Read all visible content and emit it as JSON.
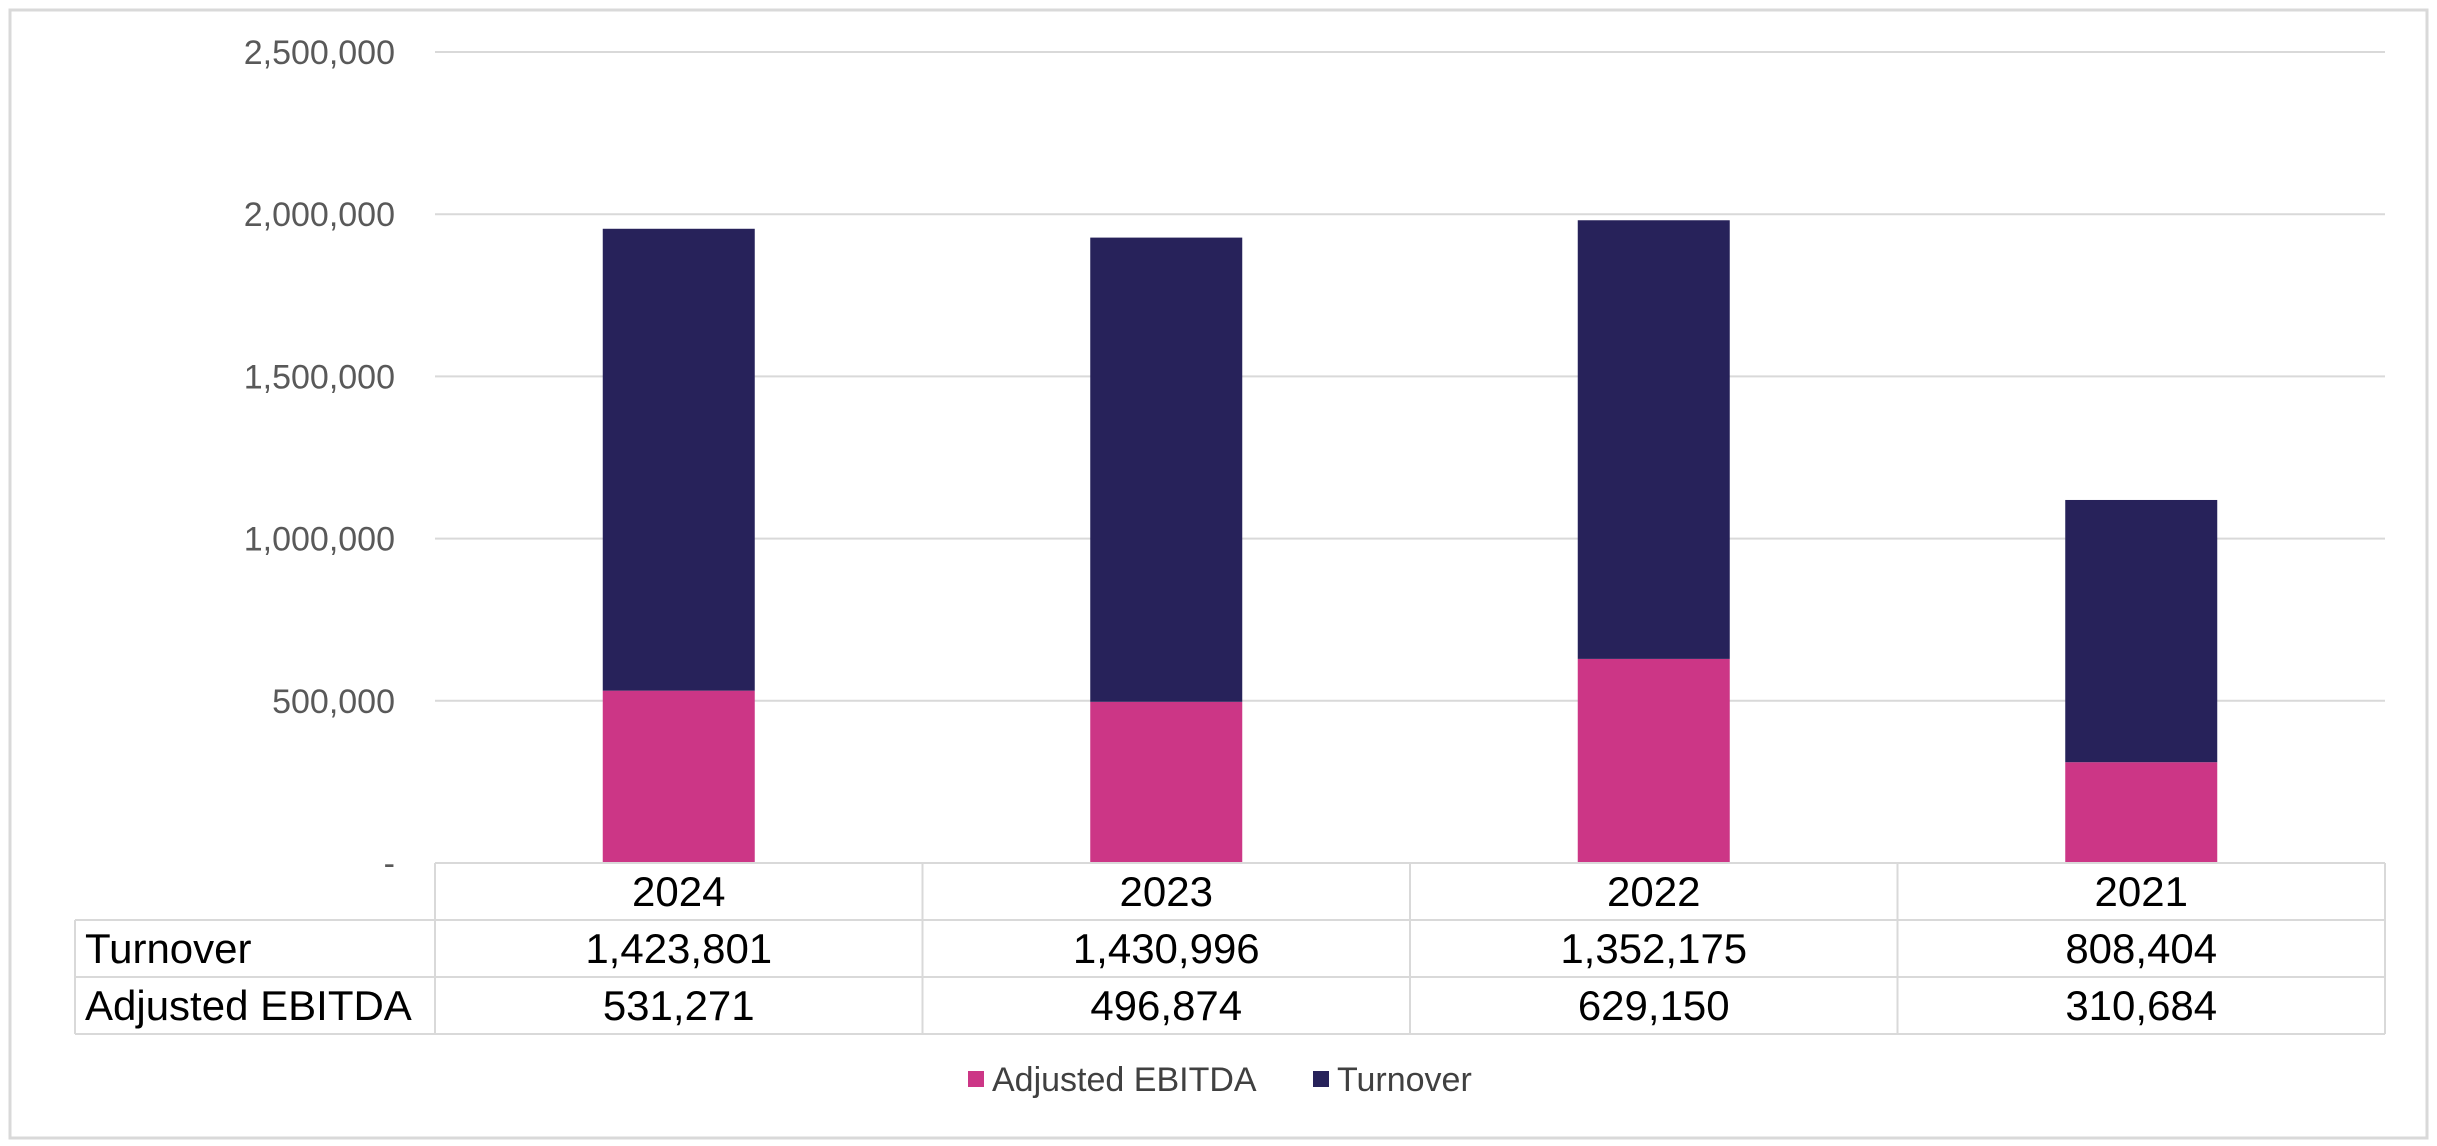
{
  "chart_data": {
    "type": "bar",
    "stacked": true,
    "categories": [
      "2024",
      "2023",
      "2022",
      "2021"
    ],
    "series": [
      {
        "name": "Adjusted EBITDA",
        "values": [
          531271,
          496874,
          629150,
          310684
        ],
        "value_labels": [
          "531,271",
          "496,874",
          "629,150",
          "310,684"
        ],
        "color": "#cc3686"
      },
      {
        "name": "Turnover",
        "values": [
          1423801,
          1430996,
          1352175,
          808404
        ],
        "value_labels": [
          "1,423,801",
          "1,430,996",
          "1,352,175",
          "808,404"
        ],
        "color": "#27225a"
      }
    ],
    "title": "",
    "xlabel": "",
    "ylabel": "",
    "ylim": [
      0,
      2500000
    ],
    "yticks": [
      0,
      500000,
      1000000,
      1500000,
      2000000,
      2500000
    ],
    "ytick_labels": [
      "-",
      "500,000",
      "1,000,000",
      "1,500,000",
      "2,000,000",
      "2,500,000"
    ],
    "grid": true,
    "legend": "bottom",
    "data_table": {
      "rows": [
        {
          "label": "Turnover",
          "series": "Turnover"
        },
        {
          "label": "Adjusted EBITDA",
          "series": "Adjusted EBITDA"
        }
      ]
    }
  }
}
